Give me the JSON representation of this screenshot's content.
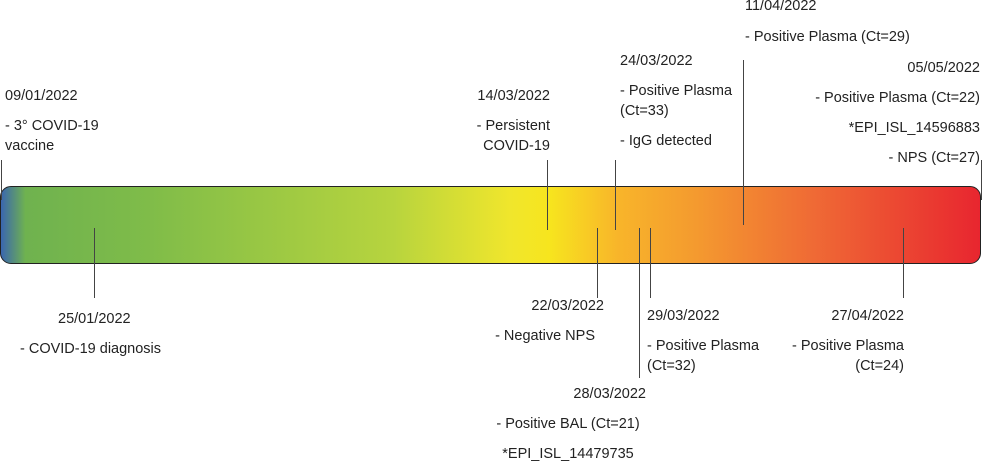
{
  "events": [
    {
      "date": "09/01/2022",
      "lines": [
        "- 3° COVID-19 vaccine"
      ]
    },
    {
      "date": "25/01/2022",
      "lines": [
        "- COVID-19 diagnosis"
      ]
    },
    {
      "date": "14/03/2022",
      "lines": [
        "- Persistent COVID-19"
      ]
    },
    {
      "date": "22/03/2022",
      "lines": [
        "- Negative NPS"
      ]
    },
    {
      "date": "24/03/2022",
      "lines": [
        "- Positive Plasma (Ct=33)",
        "- IgG detected"
      ]
    },
    {
      "date": "28/03/2022",
      "lines": [
        "- Positive BAL (Ct=21)",
        "*EPI_ISL_14479735"
      ]
    },
    {
      "date": "29/03/2022",
      "lines": [
        "- Positive Plasma (Ct=32)"
      ]
    },
    {
      "date": "11/04/2022",
      "lines": [
        "- Positive Plasma (Ct=29)"
      ]
    },
    {
      "date": "27/04/2022",
      "lines": [
        "- Positive Plasma (Ct=24)"
      ]
    },
    {
      "date": "05/05/2022",
      "lines": [
        "- Positive Plasma (Ct=22)",
        "*EPI_ISL_14596883",
        "- NPS (Ct=27)"
      ]
    }
  ]
}
